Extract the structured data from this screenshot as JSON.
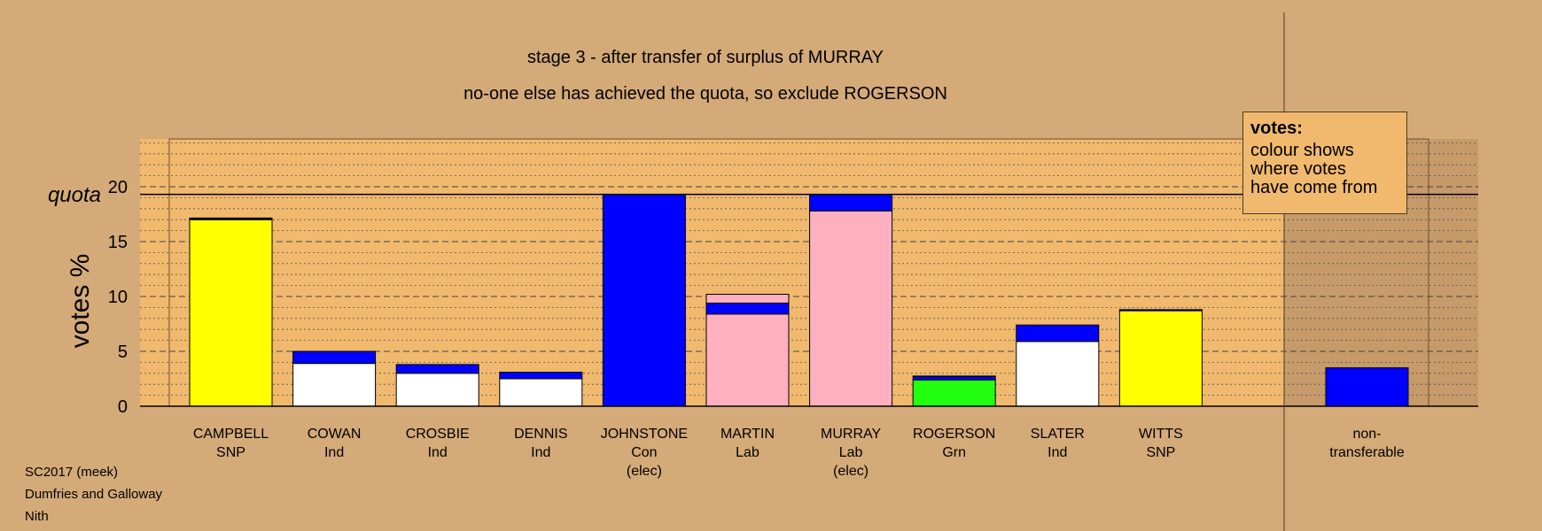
{
  "chart_data": {
    "type": "bar",
    "stacked": true,
    "title": "stage 3 - after transfer of surplus of MURRAY",
    "subtitle": "no-one else has achieved the quota, so exclude ROGERSON",
    "ylabel": "votes %",
    "quota_label": "quota",
    "quota": 19.3,
    "ylim": [
      0,
      24
    ],
    "yticks": [
      0,
      5,
      10,
      15,
      20
    ],
    "colors": {
      "snp": "#ffff00",
      "ind": "#ffffff",
      "con": "#0000ff",
      "lab": "#ffb0c0",
      "grn": "#22ff11"
    },
    "candidates": [
      {
        "name": "CAMPBELL",
        "party": "SNP",
        "status": "",
        "segments": [
          {
            "source": "snp",
            "value": 17.0
          },
          {
            "source": "con",
            "value": 0.1
          },
          {
            "source": "lab",
            "value": 0.05
          }
        ]
      },
      {
        "name": "COWAN",
        "party": "Ind",
        "status": "",
        "segments": [
          {
            "source": "ind",
            "value": 3.9
          },
          {
            "source": "con",
            "value": 1.1
          }
        ]
      },
      {
        "name": "CROSBIE",
        "party": "Ind",
        "status": "",
        "segments": [
          {
            "source": "ind",
            "value": 3.0
          },
          {
            "source": "con",
            "value": 0.8
          }
        ]
      },
      {
        "name": "DENNIS",
        "party": "Ind",
        "status": "",
        "segments": [
          {
            "source": "ind",
            "value": 2.5
          },
          {
            "source": "con",
            "value": 0.6
          }
        ]
      },
      {
        "name": "JOHNSTONE",
        "party": "Con",
        "status": "(elec)",
        "segments": [
          {
            "source": "con",
            "value": 19.3
          }
        ]
      },
      {
        "name": "MARTIN",
        "party": "Lab",
        "status": "",
        "segments": [
          {
            "source": "lab",
            "value": 8.4
          },
          {
            "source": "con",
            "value": 1.0
          },
          {
            "source": "lab",
            "value": 0.8
          }
        ]
      },
      {
        "name": "MURRAY",
        "party": "Lab",
        "status": "(elec)",
        "segments": [
          {
            "source": "lab",
            "value": 17.8
          },
          {
            "source": "con",
            "value": 1.5
          }
        ]
      },
      {
        "name": "ROGERSON",
        "party": "Grn",
        "status": "",
        "segments": [
          {
            "source": "grn",
            "value": 2.4
          },
          {
            "source": "con",
            "value": 0.3
          },
          {
            "source": "lab",
            "value": 0.05
          }
        ]
      },
      {
        "name": "SLATER",
        "party": "Ind",
        "status": "",
        "segments": [
          {
            "source": "ind",
            "value": 5.9
          },
          {
            "source": "con",
            "value": 1.5
          }
        ]
      },
      {
        "name": "WITTS",
        "party": "SNP",
        "status": "",
        "segments": [
          {
            "source": "snp",
            "value": 8.7
          },
          {
            "source": "con",
            "value": 0.1
          }
        ]
      }
    ],
    "nontransferable": {
      "label_line1": "non-",
      "label_line2": "transferable",
      "segments": [
        {
          "source": "con",
          "value": 3.5
        }
      ]
    }
  },
  "legend": {
    "title": "votes:",
    "lines": [
      "colour shows",
      "where votes",
      "have come from"
    ]
  },
  "footer": {
    "line1": "SC2017 (meek)",
    "line2": "Dumfries and Galloway",
    "line3": "Nith"
  }
}
